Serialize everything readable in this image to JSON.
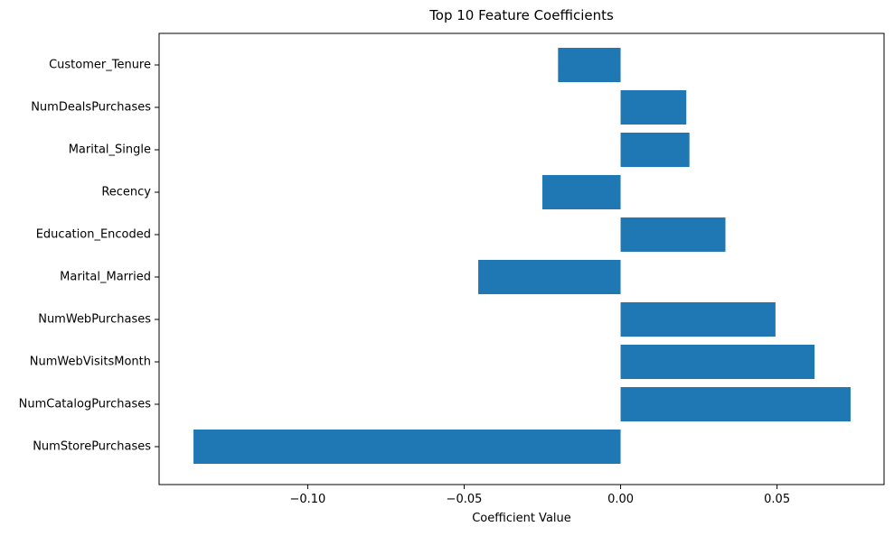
{
  "chart_data": {
    "type": "bar",
    "orientation": "horizontal",
    "title": "Top 10 Feature Coefficients",
    "xlabel": "Coefficient Value",
    "ylabel": "",
    "categories": [
      "NumStorePurchases",
      "NumCatalogPurchases",
      "NumWebVisitsMonth",
      "NumWebPurchases",
      "Marital_Married",
      "Education_Encoded",
      "Recency",
      "Marital_Single",
      "NumDealsPurchases",
      "Customer_Tenure"
    ],
    "values": [
      -0.1365,
      0.0735,
      0.062,
      0.0495,
      -0.0455,
      0.0335,
      -0.025,
      0.022,
      0.021,
      -0.02
    ],
    "xlim": [
      -0.1475,
      0.0842
    ],
    "xticks": [
      -0.1,
      -0.05,
      0.0,
      0.05
    ],
    "xtick_labels": [
      "−0.10",
      "−0.05",
      "0.00",
      "0.05"
    ],
    "grid": false,
    "bar_color": "#1f77b4"
  }
}
